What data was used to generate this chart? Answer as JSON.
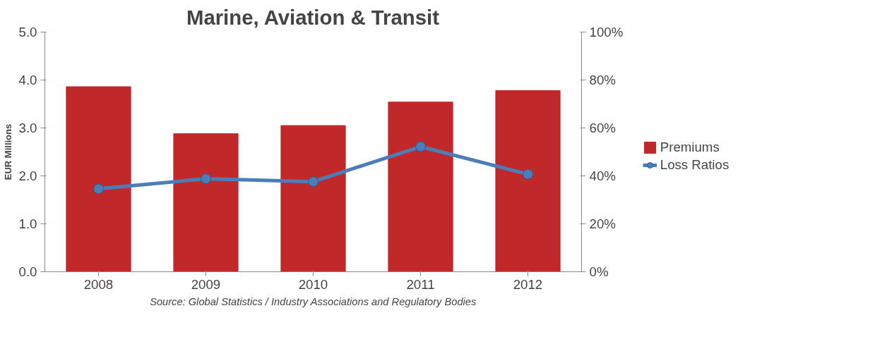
{
  "chart_data": {
    "type": "bar",
    "title": "Marine, Aviation & Transit",
    "ylabel": "EUR Millions",
    "categories": [
      "2008",
      "2009",
      "2010",
      "2011",
      "2012"
    ],
    "series": [
      {
        "name": "Premiums",
        "color": "#c0282a",
        "values": [
          3.86,
          2.88,
          3.05,
          3.54,
          3.78
        ]
      },
      {
        "name": "Loss Ratios",
        "type": "line",
        "color": "#4a7ebb",
        "axis": "y2",
        "marker": "circle",
        "values": [
          34.6,
          38.8,
          37.6,
          52.2,
          40.7
        ]
      }
    ],
    "ylim": [
      0,
      5
    ],
    "yticks": [
      {
        "value": 0,
        "label": "0.0"
      },
      {
        "value": 1,
        "label": "1.0"
      },
      {
        "value": 2,
        "label": "2.0"
      },
      {
        "value": 3,
        "label": "3.0"
      },
      {
        "value": 4,
        "label": "4.0"
      },
      {
        "value": 5,
        "label": "5.0"
      }
    ],
    "y2lim": [
      0,
      100
    ],
    "y2ticks": [
      {
        "value": 0,
        "label": "0%"
      },
      {
        "value": 20,
        "label": "20%"
      },
      {
        "value": 40,
        "label": "40%"
      },
      {
        "value": 60,
        "label": "60%"
      },
      {
        "value": 80,
        "label": "80%"
      },
      {
        "value": 100,
        "label": "100%"
      }
    ],
    "grid": false,
    "legend": "right",
    "annotations": [
      "Source: Global Statistics / Industry Associations and Regulatory Bodies"
    ]
  }
}
